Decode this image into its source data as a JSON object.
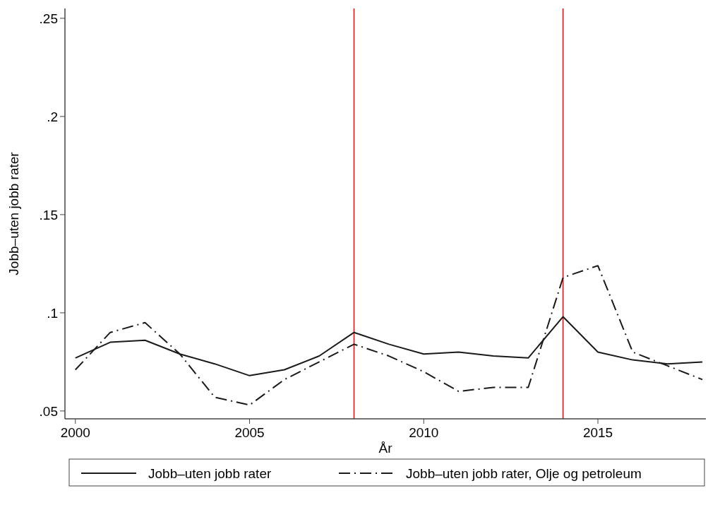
{
  "chart_data": {
    "type": "line",
    "xlabel": "År",
    "ylabel": "Jobb–uten jobb rater",
    "x": [
      2000,
      2001,
      2002,
      2003,
      2004,
      2005,
      2006,
      2007,
      2008,
      2009,
      2010,
      2011,
      2012,
      2013,
      2014,
      2015,
      2016,
      2017,
      2018
    ],
    "series": [
      {
        "name": "Jobb–uten jobb rater",
        "color": "#1a1a1a",
        "line_style": "solid",
        "values": [
          0.077,
          0.085,
          0.086,
          0.079,
          0.074,
          0.068,
          0.071,
          0.078,
          0.09,
          0.084,
          0.079,
          0.08,
          0.078,
          0.077,
          0.098,
          0.08,
          0.076,
          0.074,
          0.075
        ]
      },
      {
        "name": "Jobb–uten jobb rater, Olje og petroleum",
        "color": "#1a1a1a",
        "line_style": "dashdot",
        "values": [
          0.071,
          0.09,
          0.095,
          0.079,
          0.057,
          0.053,
          0.066,
          0.075,
          0.084,
          0.078,
          0.07,
          0.06,
          0.062,
          0.062,
          0.118,
          0.124,
          0.08,
          0.073,
          0.066
        ]
      }
    ],
    "xlim": [
      1999.7,
      2018.1
    ],
    "xticks": [
      2000,
      2005,
      2010,
      2015
    ],
    "ylim": [
      0.046,
      0.255
    ],
    "yticks": [
      {
        "value": 0.05,
        "label": ".05"
      },
      {
        "value": 0.1,
        "label": ".1"
      },
      {
        "value": 0.15,
        "label": ".15"
      },
      {
        "value": 0.2,
        "label": ".2"
      },
      {
        "value": 0.25,
        "label": ".25"
      }
    ],
    "ref_lines": [
      {
        "axis": "x",
        "value": 2008,
        "color": "#ff0000"
      },
      {
        "axis": "x",
        "value": 2014,
        "color": "#ff0000"
      }
    ],
    "grid": false,
    "legend": "bottom"
  }
}
